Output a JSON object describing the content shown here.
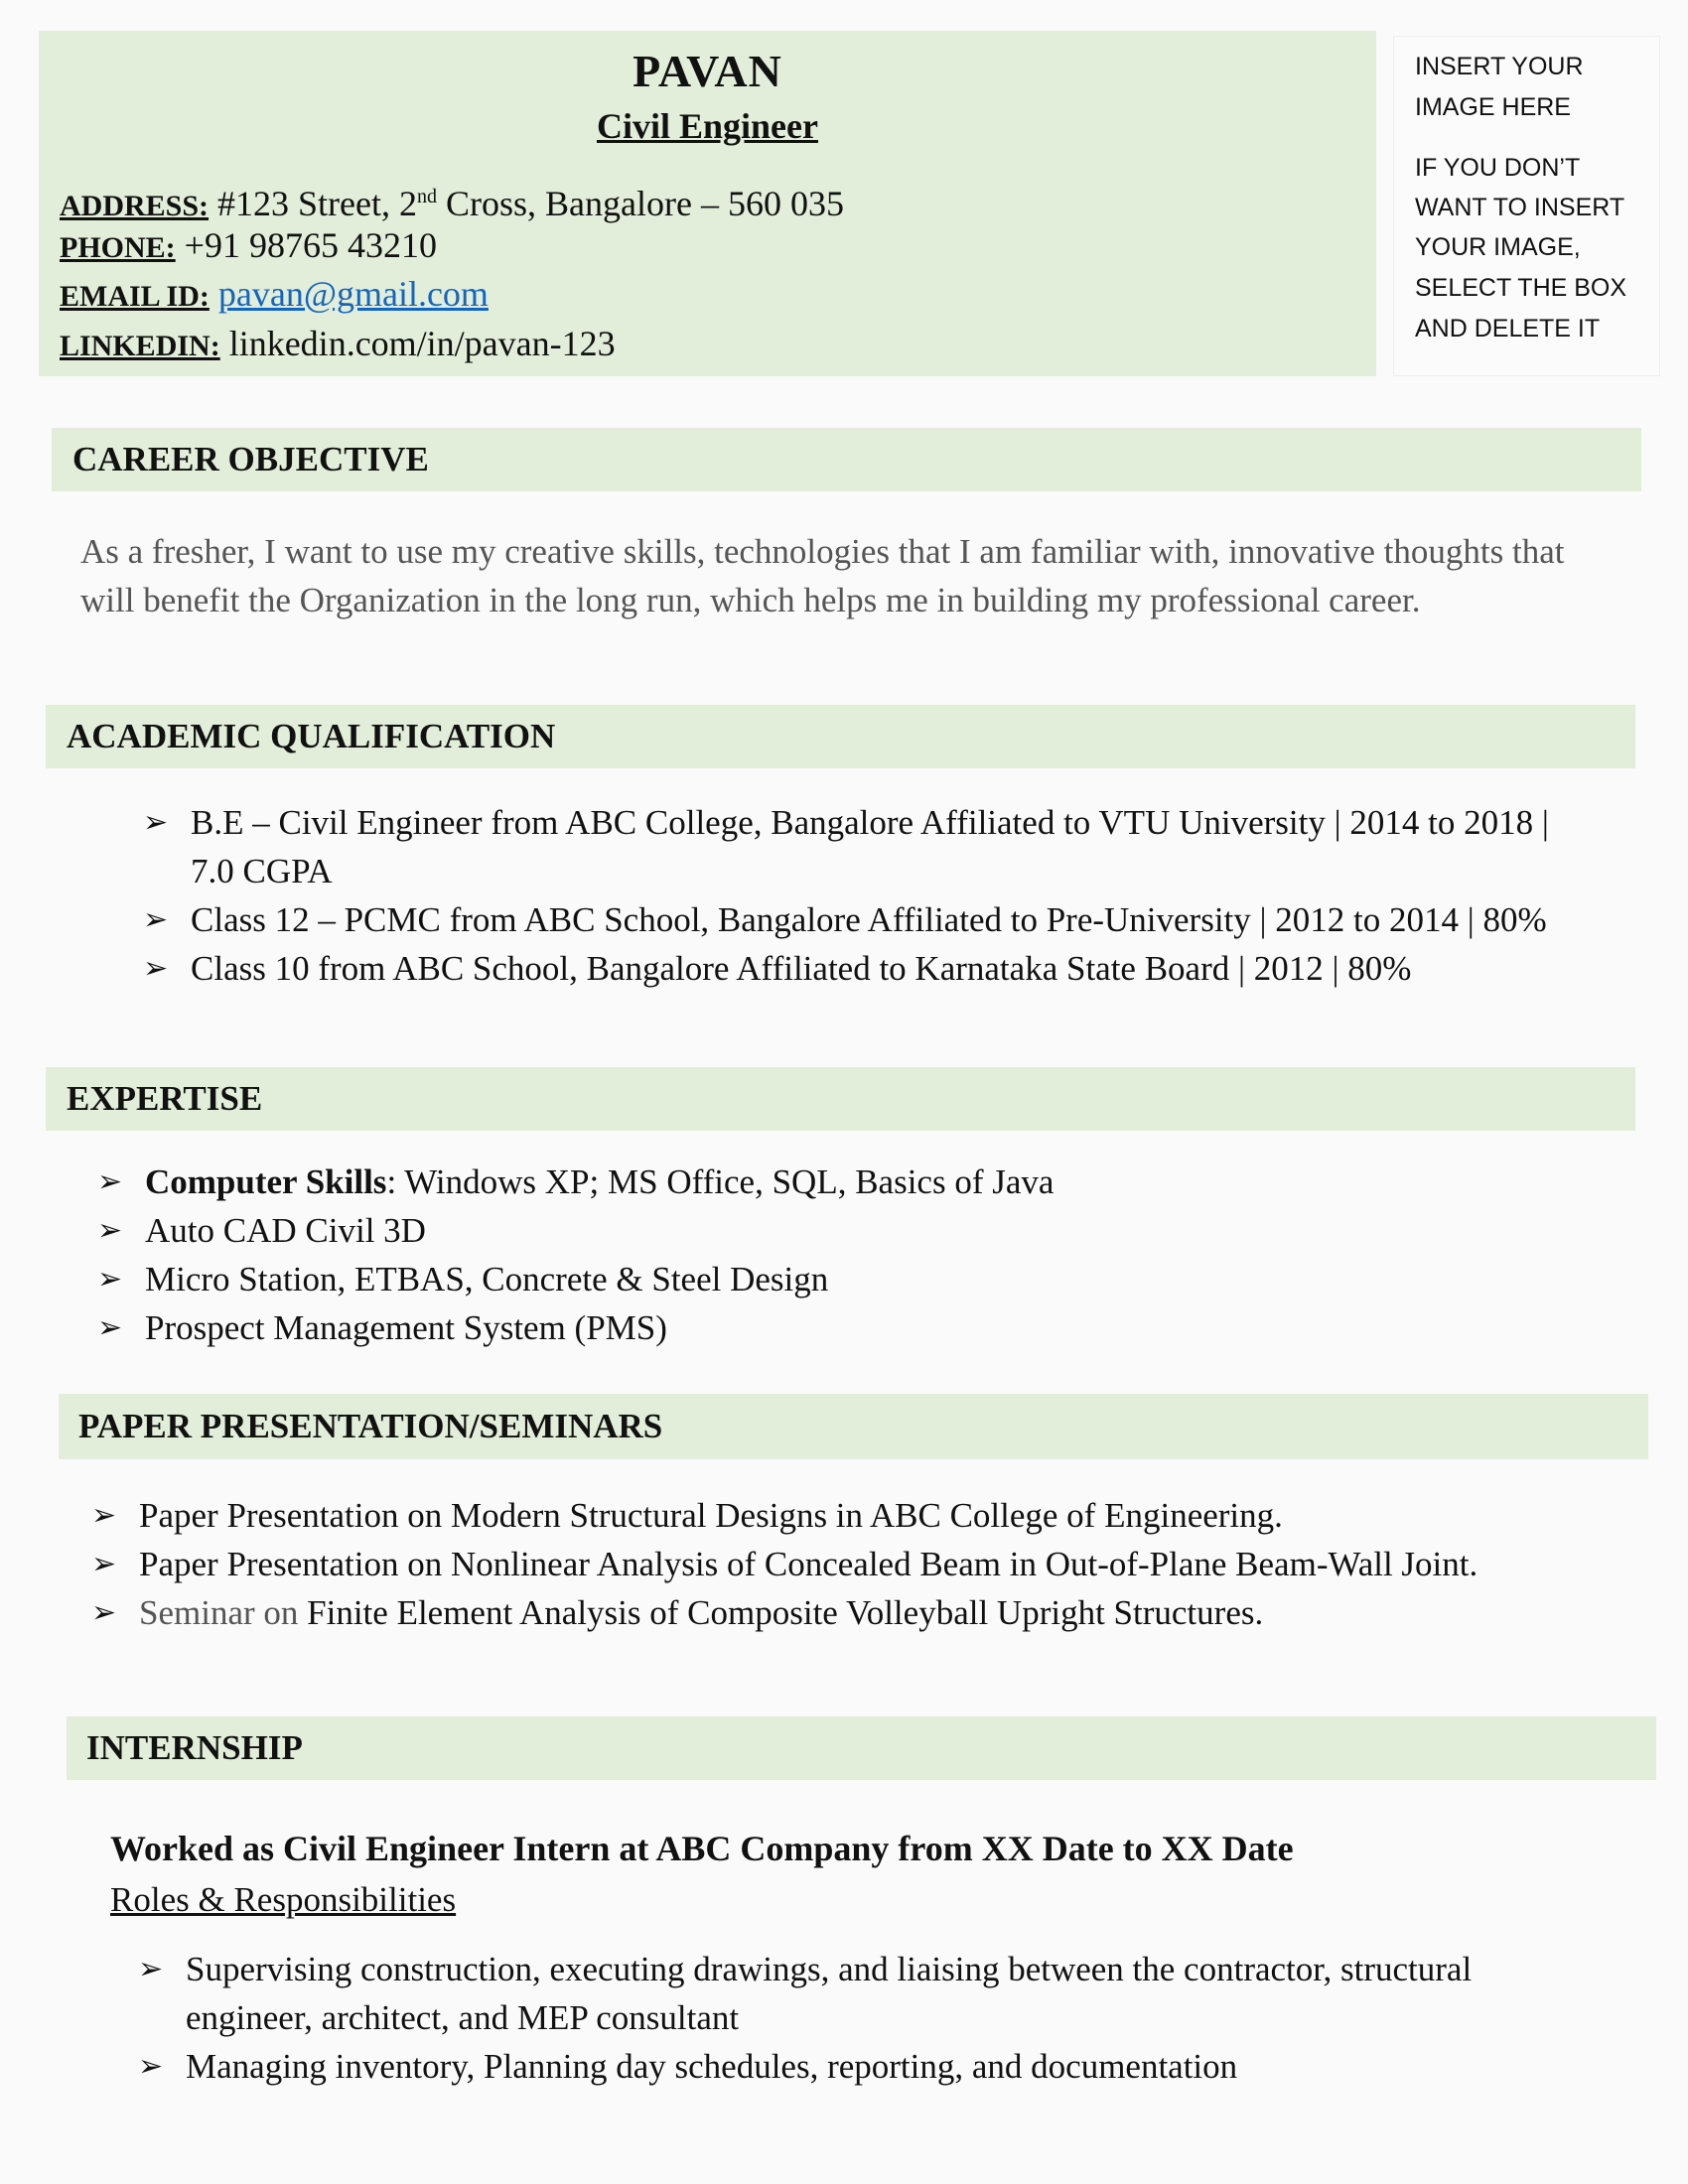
{
  "header": {
    "name": "PAVAN",
    "title": "Civil Engineer",
    "address_label": "ADDRESS:",
    "address_pre": "#123 Street, 2",
    "address_sup": "nd",
    "address_post": " Cross, Bangalore – 560 035",
    "phone_label": "PHONE:",
    "phone": "+91 98765 43210",
    "email_label": "EMAIL ID:",
    "email": "pavan@gmail.com",
    "linkedin_label": "LINKEDIN:",
    "linkedin": "linkedin.com/in/pavan-123"
  },
  "image_placeholder": {
    "lines": [
      "INSERT YOUR",
      "IMAGE HERE",
      "IF YOU DON’T",
      "WANT TO INSERT",
      "YOUR IMAGE,",
      "SELECT THE BOX",
      "AND DELETE IT"
    ]
  },
  "career_objective": {
    "heading": "CAREER OBJECTIVE",
    "text": "As a fresher, I want to use my creative skills, technologies that I am familiar with, innovative thoughts that will benefit the Organization in the long run, which helps me in building my professional career."
  },
  "academic": {
    "heading": "ACADEMIC QUALIFICATION",
    "items": [
      "B.E – Civil Engineer from ABC College, Bangalore Affiliated to VTU University | 2014 to 2018 | 7.0 CGPA",
      "Class 12 – PCMC from ABC School, Bangalore Affiliated to Pre-University | 2012 to 2014 | 80%",
      "Class 10 from ABC School, Bangalore Affiliated to Karnataka State Board | 2012 | 80%"
    ]
  },
  "expertise": {
    "heading": "EXPERTISE",
    "item0_bold": "Computer Skills",
    "item0_rest": ": Windows XP; MS Office, SQL, Basics of Java",
    "items": [
      "Auto CAD Civil 3D",
      "Micro Station, ETBAS, Concrete & Steel Design",
      "Prospect Management System (PMS)"
    ]
  },
  "papers": {
    "heading": "PAPER PRESENTATION/SEMINARS",
    "items": [
      "Paper Presentation on Modern Structural Designs in ABC College of Engineering.",
      "Paper Presentation on Nonlinear Analysis of Concealed Beam in Out-of-Plane Beam-Wall Joint."
    ],
    "seminar_prefix": "Seminar on ",
    "seminar_rest": "Finite Element Analysis of Composite Volleyball Upright Structures."
  },
  "internship": {
    "heading": "INTERNSHIP",
    "role": "Worked as Civil Engineer Intern at ABC Company from XX Date to XX Date",
    "roles_label": "Roles & Responsibilities",
    "items": [
      "Supervising construction, executing drawings, and liaising between the contractor, structural engineer, architect, and MEP consultant",
      "Managing inventory, Planning day schedules, reporting, and documentation"
    ]
  },
  "bullet_icon": "arrow-bullet-icon",
  "colors": {
    "section_bg": "#e2eed9",
    "link": "#1565c0"
  }
}
